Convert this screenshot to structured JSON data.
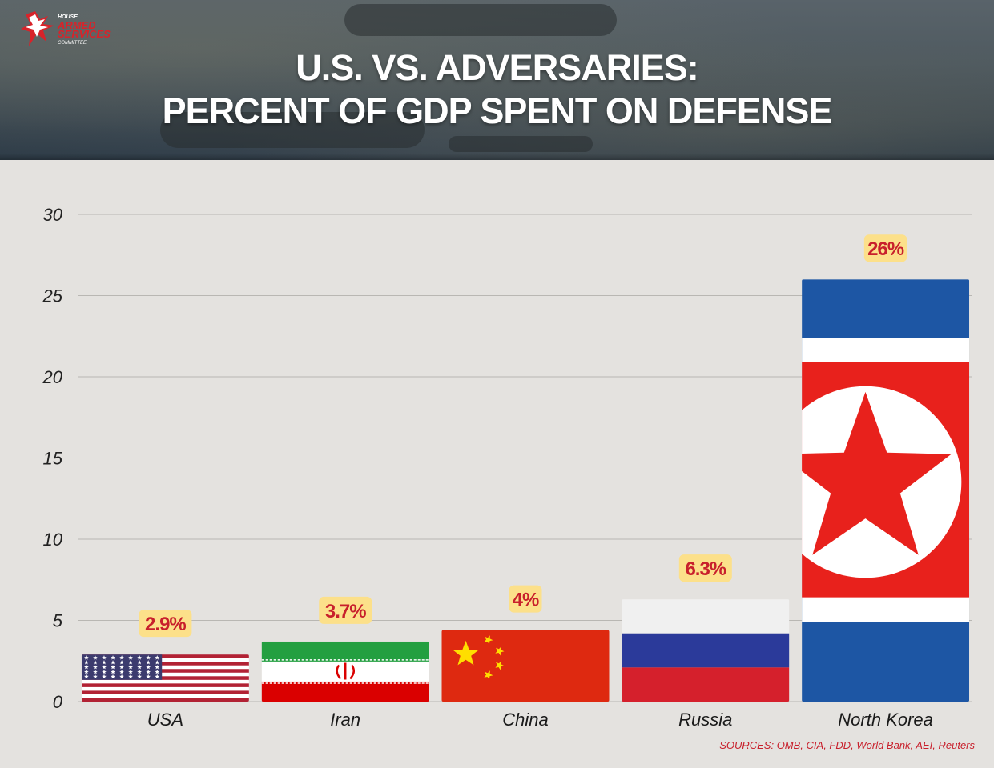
{
  "header": {
    "title_line1": "U.S. VS. ADVERSARIES:",
    "title_line2": "PERCENT OF GDP SPENT ON DEFENSE",
    "logo": {
      "line1": "HOUSE",
      "line2": "ARMED",
      "line3": "SERVICES",
      "line4": "COMMITTEE",
      "icon": "eagle-icon"
    }
  },
  "colors": {
    "red": "#c8202c",
    "label_bg": "#fce08a",
    "background": "#e4e2df"
  },
  "chart_data": {
    "type": "bar",
    "title": "U.S. VS. ADVERSARIES: PERCENT OF GDP SPENT ON DEFENSE",
    "categories": [
      "USA",
      "Iran",
      "China",
      "Russia",
      "North Korea"
    ],
    "values": [
      2.9,
      3.7,
      4.4,
      6.3,
      26
    ],
    "value_labels": [
      "2.9%",
      "3.7%",
      "4%",
      "6.3%",
      "26%"
    ],
    "bar_fills": [
      "flag-usa",
      "flag-iran",
      "flag-china",
      "flag-russia",
      "flag-north-korea"
    ],
    "y_ticks": [
      "0",
      "5",
      "10",
      "15",
      "20",
      "25",
      "30"
    ],
    "ylim": [
      0,
      30
    ],
    "grid": true,
    "xlabel": "",
    "ylabel": ""
  },
  "footer": {
    "sources": "SOURCES: OMB, CIA, FDD, World Bank, AEI, Reuters"
  }
}
